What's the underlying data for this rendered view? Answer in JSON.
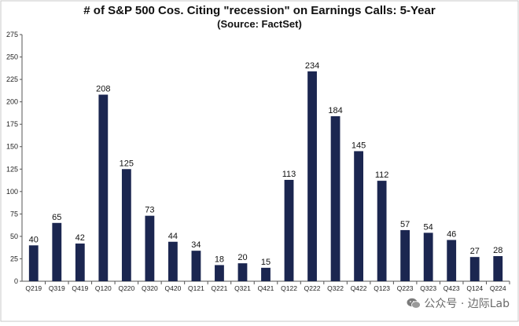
{
  "chart_data": {
    "type": "bar",
    "title": "# of S&P 500 Cos. Citing \"recession\" on Earnings Calls: 5-Year",
    "subtitle": "(Source: FactSet)",
    "categories": [
      "Q219",
      "Q319",
      "Q419",
      "Q120",
      "Q220",
      "Q320",
      "Q420",
      "Q121",
      "Q221",
      "Q321",
      "Q421",
      "Q122",
      "Q222",
      "Q322",
      "Q422",
      "Q123",
      "Q223",
      "Q323",
      "Q423",
      "Q124",
      "Q224"
    ],
    "values": [
      40,
      65,
      42,
      208,
      125,
      73,
      44,
      34,
      18,
      20,
      15,
      113,
      234,
      184,
      145,
      112,
      57,
      54,
      46,
      27,
      28
    ],
    "ylim": [
      0,
      275
    ],
    "yticks": [
      0,
      25,
      50,
      75,
      100,
      125,
      150,
      175,
      200,
      225,
      250,
      275
    ],
    "grid": false,
    "bar_color": "#1b2650"
  },
  "watermark": {
    "text": "公众号 · 边际Lab",
    "icon": "wechat-icon"
  }
}
